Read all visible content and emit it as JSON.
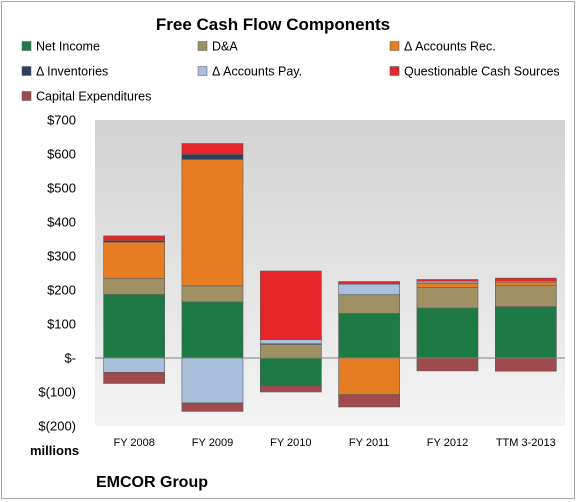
{
  "chart_data": {
    "type": "bar",
    "stacked": true,
    "title": "Free Cash Flow Components",
    "unit_label": "millions",
    "source_label": "EMCOR Group",
    "categories": [
      "FY 2008",
      "FY 2009",
      "FY 2010",
      "FY 2011",
      "FY 2012",
      "TTM 3-2013"
    ],
    "ylim": [
      -200,
      700
    ],
    "yticks": [
      {
        "value": 700,
        "label": "$700"
      },
      {
        "value": 600,
        "label": "$600"
      },
      {
        "value": 500,
        "label": "$500"
      },
      {
        "value": 400,
        "label": "$400"
      },
      {
        "value": 300,
        "label": "$300"
      },
      {
        "value": 200,
        "label": "$200"
      },
      {
        "value": 100,
        "label": "$100"
      },
      {
        "value": 0,
        "label": "$-"
      },
      {
        "value": -100,
        "label": "$(100)"
      },
      {
        "value": -200,
        "label": "$(200)"
      }
    ],
    "legend_position": "top",
    "series": [
      {
        "name": "Net Income",
        "color": "#1e7a45",
        "values": [
          187,
          165,
          -82,
          131,
          147,
          151
        ]
      },
      {
        "name": "D&A",
        "color": "#a09165",
        "values": [
          47,
          47,
          40,
          55,
          61,
          63
        ]
      },
      {
        "name": "Δ Accounts Rec.",
        "color": "#e67d22",
        "values": [
          107,
          372,
          0,
          -108,
          12,
          9
        ]
      },
      {
        "name": "Δ Inventories",
        "color": "#2c3f5e",
        "values": [
          4,
          15,
          2,
          -1,
          1,
          -1
        ]
      },
      {
        "name": "Δ Accounts Pay.",
        "color": "#a9c0dd",
        "values": [
          -42,
          -132,
          12,
          31,
          5,
          3
        ]
      },
      {
        "name": "Questionable Cash Sources",
        "color": "#e52528",
        "values": [
          14,
          32,
          202,
          8,
          5,
          9
        ]
      },
      {
        "name": "Capital Expenditures",
        "color": "#a04a4e",
        "values": [
          -33,
          -25,
          -18,
          -35,
          -38,
          -38
        ]
      }
    ]
  }
}
